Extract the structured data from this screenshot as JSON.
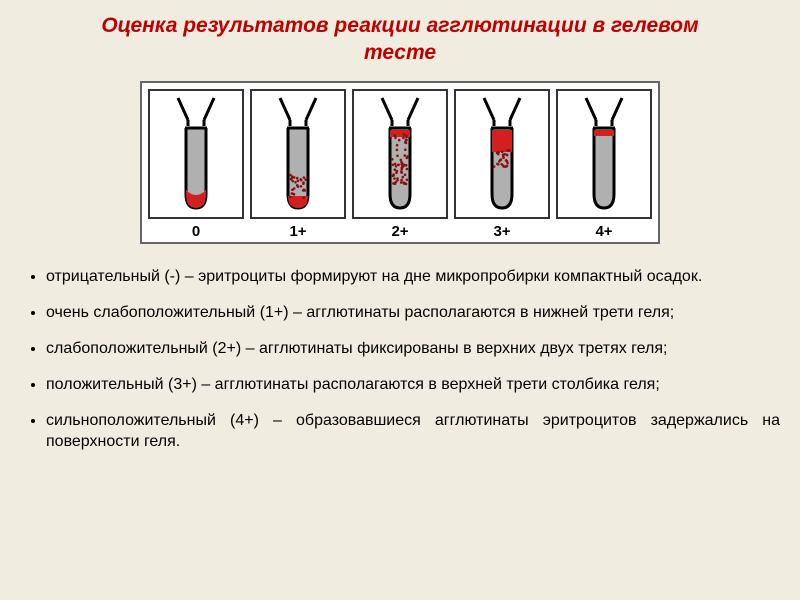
{
  "title": {
    "line1": "Оценка результатов реакции агглютинации в гелевом",
    "line2": "тесте",
    "color": "#c00000",
    "fontsize": 21
  },
  "tubes_panel": {
    "border_color": "#666666",
    "bg": "#ffffff",
    "label_fontsize": 15,
    "label_color": "#000000",
    "tube_outline": "#000000",
    "tube_fill": "#b0b0b0",
    "red": "#d21f1f",
    "dark_red": "#8a0f0f",
    "tubes": [
      {
        "label": "0",
        "type": "negative"
      },
      {
        "label": "1+",
        "type": "very_weak"
      },
      {
        "label": "2+",
        "type": "weak"
      },
      {
        "label": "3+",
        "type": "positive"
      },
      {
        "label": "4+",
        "type": "strong"
      }
    ]
  },
  "bullets": {
    "fontsize": 16,
    "color": "#000000",
    "items": [
      "отрицательный (-) – эритроциты формируют на дне микропробирки компактный осадок.",
      "очень слабоположительный (1+) – агглютинаты располагаются в нижней трети геля;",
      "слабоположительный (2+) – агглютинаты фиксированы в верхних двух третях геля;",
      "положительный (3+) – агглютинаты располагаются в верхней трети столбика геля;",
      "сильноположительный (4+) – образовавшиеся агглютинаты эритроцитов задержались на поверхности геля."
    ]
  },
  "page_bg": "#f0ede0"
}
